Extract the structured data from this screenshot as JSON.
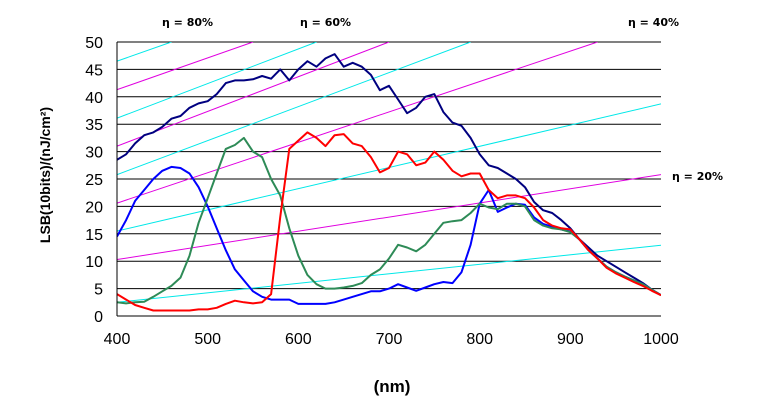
{
  "chart_data": {
    "type": "line",
    "xlabel": "(nm)",
    "ylabel": "LSB(10bits)/(nJ/cm²)",
    "xlim": [
      400,
      1000
    ],
    "ylim": [
      0,
      50
    ],
    "x_ticks": [
      "400",
      "500",
      "600",
      "700",
      "800",
      "900",
      "1000"
    ],
    "y_ticks": [
      "0",
      "5",
      "10",
      "15",
      "20",
      "25",
      "30",
      "35",
      "40",
      "45",
      "50"
    ],
    "grid": "horizontal",
    "efficiency_labels": [
      {
        "text": "η = 80%"
      },
      {
        "text": "η = 60%"
      },
      {
        "text": "η = 40%"
      },
      {
        "text": "η = 20%"
      }
    ],
    "efficiency_lines": [
      {
        "color": "#00e8e8",
        "points": [
          [
            400,
            2.5
          ],
          [
            1000,
            12.9
          ]
        ]
      },
      {
        "color": "#e000e0",
        "points": [
          [
            400,
            10.3
          ],
          [
            1000,
            25.8
          ]
        ]
      },
      {
        "color": "#00e8e8",
        "points": [
          [
            400,
            15.5
          ],
          [
            1000,
            38.7
          ]
        ]
      },
      {
        "color": "#e000e0",
        "points": [
          [
            400,
            20.6
          ],
          [
            930,
            50
          ]
        ]
      },
      {
        "color": "#00e8e8",
        "points": [
          [
            400,
            25.8
          ],
          [
            790,
            50
          ]
        ]
      },
      {
        "color": "#e000e0",
        "points": [
          [
            400,
            31.0
          ],
          [
            700,
            50
          ]
        ]
      },
      {
        "color": "#00e8e8",
        "points": [
          [
            400,
            36.1
          ],
          [
            620,
            50
          ]
        ]
      },
      {
        "color": "#e000e0",
        "points": [
          [
            400,
            41.3
          ],
          [
            550,
            50
          ]
        ]
      },
      {
        "color": "#00e8e8",
        "points": [
          [
            400,
            46.5
          ],
          [
            460,
            50
          ]
        ]
      }
    ],
    "series": [
      {
        "color": "#000080",
        "points": [
          [
            400,
            28.5
          ],
          [
            410,
            29.5
          ],
          [
            420,
            31.5
          ],
          [
            430,
            33
          ],
          [
            440,
            33.5
          ],
          [
            450,
            34.5
          ],
          [
            460,
            36
          ],
          [
            470,
            36.5
          ],
          [
            480,
            38
          ],
          [
            490,
            38.8
          ],
          [
            500,
            39.2
          ],
          [
            510,
            40.5
          ],
          [
            520,
            42.5
          ],
          [
            530,
            43
          ],
          [
            540,
            43
          ],
          [
            550,
            43.2
          ],
          [
            560,
            43.8
          ],
          [
            570,
            43.3
          ],
          [
            580,
            45
          ],
          [
            590,
            43
          ],
          [
            600,
            45
          ],
          [
            610,
            46.5
          ],
          [
            620,
            45.5
          ],
          [
            630,
            47
          ],
          [
            640,
            47.8
          ],
          [
            650,
            45.5
          ],
          [
            660,
            46.2
          ],
          [
            670,
            45.5
          ],
          [
            680,
            44
          ],
          [
            690,
            41.2
          ],
          [
            700,
            42
          ],
          [
            710,
            39.5
          ],
          [
            720,
            37
          ],
          [
            730,
            38
          ],
          [
            740,
            40
          ],
          [
            750,
            40.5
          ],
          [
            760,
            37.2
          ],
          [
            770,
            35.3
          ],
          [
            780,
            34.7
          ],
          [
            790,
            32.5
          ],
          [
            800,
            29.5
          ],
          [
            810,
            27.5
          ],
          [
            820,
            27
          ],
          [
            830,
            26
          ],
          [
            840,
            25
          ],
          [
            850,
            23.5
          ],
          [
            860,
            20.8
          ],
          [
            870,
            19.3
          ],
          [
            880,
            18.8
          ],
          [
            890,
            17.5
          ],
          [
            900,
            16
          ],
          [
            910,
            14
          ],
          [
            920,
            12.5
          ],
          [
            930,
            11
          ],
          [
            940,
            10
          ],
          [
            950,
            9
          ],
          [
            960,
            8
          ],
          [
            970,
            7
          ],
          [
            980,
            6
          ],
          [
            990,
            4.8
          ],
          [
            1000,
            3.8
          ]
        ]
      },
      {
        "color": "#0000ff",
        "points": [
          [
            400,
            14.5
          ],
          [
            410,
            17.5
          ],
          [
            420,
            21
          ],
          [
            430,
            23
          ],
          [
            440,
            25
          ],
          [
            450,
            26.5
          ],
          [
            460,
            27.2
          ],
          [
            470,
            27
          ],
          [
            480,
            26
          ],
          [
            490,
            23.5
          ],
          [
            500,
            20
          ],
          [
            510,
            16
          ],
          [
            520,
            12
          ],
          [
            530,
            8.5
          ],
          [
            540,
            6.5
          ],
          [
            550,
            4.5
          ],
          [
            560,
            3.5
          ],
          [
            570,
            3
          ],
          [
            580,
            3
          ],
          [
            590,
            3
          ],
          [
            600,
            2.2
          ],
          [
            610,
            2.2
          ],
          [
            620,
            2.2
          ],
          [
            630,
            2.2
          ],
          [
            640,
            2.5
          ],
          [
            650,
            3
          ],
          [
            660,
            3.5
          ],
          [
            670,
            4
          ],
          [
            680,
            4.5
          ],
          [
            690,
            4.5
          ],
          [
            700,
            5
          ],
          [
            710,
            5.8
          ],
          [
            720,
            5.2
          ],
          [
            730,
            4.6
          ],
          [
            740,
            5.2
          ],
          [
            750,
            5.8
          ],
          [
            760,
            6.2
          ],
          [
            770,
            6
          ],
          [
            780,
            8
          ],
          [
            790,
            13
          ],
          [
            800,
            20.5
          ],
          [
            810,
            23
          ],
          [
            820,
            19
          ],
          [
            830,
            19.8
          ],
          [
            840,
            20.5
          ],
          [
            850,
            20.3
          ],
          [
            860,
            18
          ],
          [
            870,
            16.8
          ],
          [
            880,
            16.3
          ],
          [
            890,
            15.8
          ],
          [
            900,
            15.4
          ],
          [
            910,
            14
          ],
          [
            920,
            12
          ],
          [
            930,
            10.5
          ],
          [
            940,
            9
          ],
          [
            950,
            8
          ],
          [
            960,
            7.2
          ],
          [
            970,
            6.5
          ],
          [
            980,
            5.8
          ],
          [
            990,
            4.8
          ],
          [
            1000,
            3.8
          ]
        ]
      },
      {
        "color": "#2e8b57",
        "points": [
          [
            400,
            2.5
          ],
          [
            410,
            2.3
          ],
          [
            420,
            2.5
          ],
          [
            430,
            2.6
          ],
          [
            440,
            3.5
          ],
          [
            450,
            4.5
          ],
          [
            460,
            5.5
          ],
          [
            470,
            7
          ],
          [
            480,
            11
          ],
          [
            490,
            17
          ],
          [
            500,
            21.5
          ],
          [
            510,
            26
          ],
          [
            520,
            30.5
          ],
          [
            530,
            31.2
          ],
          [
            540,
            32.5
          ],
          [
            550,
            30
          ],
          [
            560,
            29
          ],
          [
            570,
            25
          ],
          [
            580,
            22
          ],
          [
            590,
            16
          ],
          [
            600,
            11
          ],
          [
            610,
            7.5
          ],
          [
            620,
            5.8
          ],
          [
            630,
            5
          ],
          [
            640,
            5
          ],
          [
            650,
            5.2
          ],
          [
            660,
            5.5
          ],
          [
            670,
            6
          ],
          [
            680,
            7.5
          ],
          [
            690,
            8.5
          ],
          [
            700,
            10.5
          ],
          [
            710,
            13
          ],
          [
            720,
            12.5
          ],
          [
            730,
            11.8
          ],
          [
            740,
            13
          ],
          [
            750,
            15
          ],
          [
            760,
            17
          ],
          [
            770,
            17.3
          ],
          [
            780,
            17.5
          ],
          [
            790,
            18.8
          ],
          [
            800,
            20.5
          ],
          [
            810,
            19.8
          ],
          [
            820,
            19.5
          ],
          [
            830,
            20.5
          ],
          [
            840,
            20.5
          ],
          [
            850,
            20
          ],
          [
            860,
            17.5
          ],
          [
            870,
            16.5
          ],
          [
            880,
            16
          ],
          [
            890,
            15.8
          ],
          [
            900,
            15.3
          ],
          [
            910,
            14
          ],
          [
            920,
            12
          ],
          [
            930,
            10.5
          ],
          [
            940,
            9
          ],
          [
            950,
            8
          ],
          [
            960,
            7.2
          ],
          [
            970,
            6.5
          ],
          [
            980,
            5.8
          ],
          [
            990,
            4.8
          ],
          [
            1000,
            3.8
          ]
        ]
      },
      {
        "color": "#ff0000",
        "points": [
          [
            400,
            4
          ],
          [
            410,
            3
          ],
          [
            420,
            2
          ],
          [
            430,
            1.5
          ],
          [
            440,
            1
          ],
          [
            450,
            1
          ],
          [
            460,
            1
          ],
          [
            470,
            1
          ],
          [
            480,
            1
          ],
          [
            490,
            1.2
          ],
          [
            500,
            1.2
          ],
          [
            510,
            1.5
          ],
          [
            520,
            2.2
          ],
          [
            530,
            2.8
          ],
          [
            540,
            2.5
          ],
          [
            550,
            2.3
          ],
          [
            560,
            2.5
          ],
          [
            570,
            4
          ],
          [
            580,
            18
          ],
          [
            590,
            30.5
          ],
          [
            600,
            32
          ],
          [
            610,
            33.5
          ],
          [
            620,
            32.5
          ],
          [
            630,
            31
          ],
          [
            640,
            33
          ],
          [
            650,
            33.2
          ],
          [
            660,
            31.5
          ],
          [
            670,
            31
          ],
          [
            680,
            29
          ],
          [
            690,
            26.2
          ],
          [
            700,
            27
          ],
          [
            710,
            30
          ],
          [
            720,
            29.5
          ],
          [
            730,
            27.5
          ],
          [
            740,
            28
          ],
          [
            750,
            30
          ],
          [
            760,
            28.5
          ],
          [
            770,
            26.5
          ],
          [
            780,
            25.5
          ],
          [
            790,
            26
          ],
          [
            800,
            26
          ],
          [
            810,
            23
          ],
          [
            820,
            21.5
          ],
          [
            830,
            22
          ],
          [
            840,
            22
          ],
          [
            850,
            21.5
          ],
          [
            860,
            19.8
          ],
          [
            870,
            17.5
          ],
          [
            880,
            16.5
          ],
          [
            890,
            16
          ],
          [
            900,
            15.8
          ],
          [
            910,
            14
          ],
          [
            920,
            12
          ],
          [
            930,
            10.5
          ],
          [
            940,
            8.8
          ],
          [
            950,
            7.8
          ],
          [
            960,
            7
          ],
          [
            970,
            6.2
          ],
          [
            980,
            5.5
          ],
          [
            990,
            4.6
          ],
          [
            1000,
            3.8
          ]
        ]
      }
    ]
  }
}
